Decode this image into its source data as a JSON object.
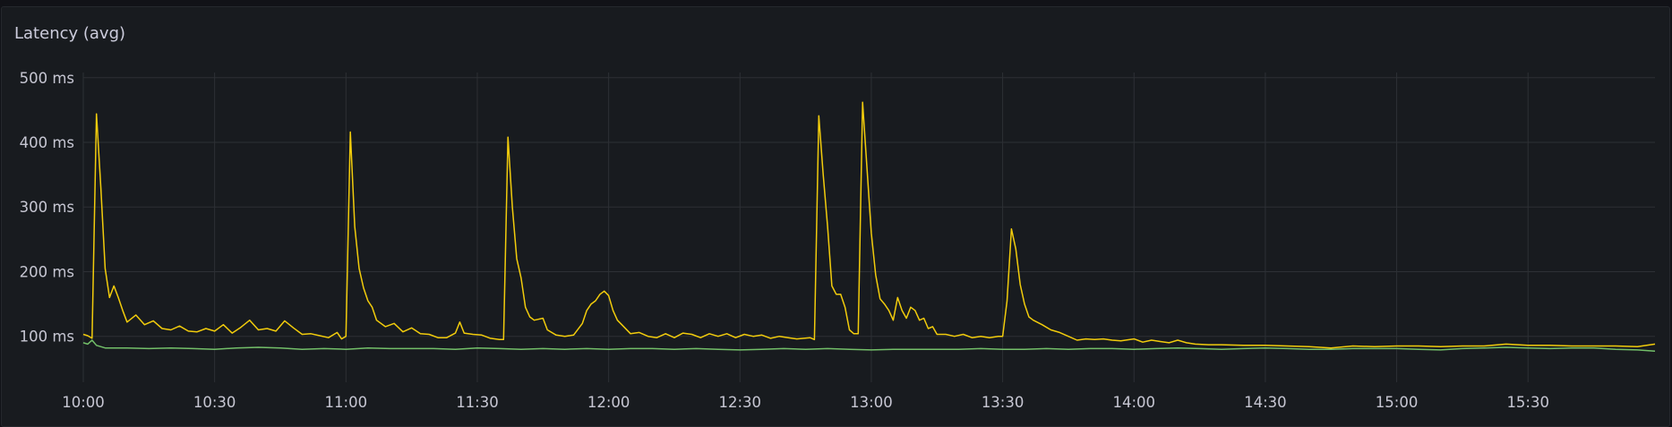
{
  "panel": {
    "title": "Latency (avg)"
  },
  "chart_data": {
    "type": "line",
    "title": "Latency (avg)",
    "xlabel": "",
    "ylabel": "",
    "x_ticks": [
      "10:00",
      "10:30",
      "11:00",
      "11:30",
      "12:00",
      "12:30",
      "13:00",
      "13:30",
      "14:00",
      "14:30",
      "15:00",
      "15:30"
    ],
    "y_ticks": [
      {
        "value": 100,
        "label": "100 ms"
      },
      {
        "value": 200,
        "label": "200 ms"
      },
      {
        "value": 300,
        "label": "300 ms"
      },
      {
        "value": 400,
        "label": "400 ms"
      },
      {
        "value": 500,
        "label": "500 ms"
      }
    ],
    "xlim": [
      "10:00",
      "15:59"
    ],
    "ylim": [
      29,
      508
    ],
    "unit": "ms",
    "grid": true,
    "legend": "none",
    "series": [
      {
        "color": "#f2cc0c",
        "points": [
          [
            "10:00",
            103
          ],
          [
            "10:01",
            101
          ],
          [
            "10:02",
            97
          ],
          [
            "10:03",
            444
          ],
          [
            "10:04",
            330
          ],
          [
            "10:05",
            205
          ],
          [
            "10:06",
            160
          ],
          [
            "10:07",
            178
          ],
          [
            "10:08",
            160
          ],
          [
            "10:09",
            140
          ],
          [
            "10:10",
            122
          ],
          [
            "10:12",
            133
          ],
          [
            "10:14",
            118
          ],
          [
            "10:16",
            124
          ],
          [
            "10:18",
            112
          ],
          [
            "10:20",
            110
          ],
          [
            "10:22",
            116
          ],
          [
            "10:24",
            108
          ],
          [
            "10:26",
            107
          ],
          [
            "10:28",
            112
          ],
          [
            "10:30",
            108
          ],
          [
            "10:32",
            118
          ],
          [
            "10:34",
            105
          ],
          [
            "10:36",
            114
          ],
          [
            "10:38",
            125
          ],
          [
            "10:40",
            110
          ],
          [
            "10:42",
            112
          ],
          [
            "10:44",
            108
          ],
          [
            "10:46",
            124
          ],
          [
            "10:48",
            113
          ],
          [
            "10:50",
            103
          ],
          [
            "10:52",
            104
          ],
          [
            "10:54",
            101
          ],
          [
            "10:56",
            98
          ],
          [
            "10:58",
            106
          ],
          [
            "10:59",
            96
          ],
          [
            "11:00",
            100
          ],
          [
            "11:01",
            416
          ],
          [
            "11:02",
            270
          ],
          [
            "11:03",
            205
          ],
          [
            "11:04",
            175
          ],
          [
            "11:05",
            155
          ],
          [
            "11:06",
            145
          ],
          [
            "11:07",
            125
          ],
          [
            "11:09",
            115
          ],
          [
            "11:11",
            120
          ],
          [
            "11:13",
            107
          ],
          [
            "11:15",
            113
          ],
          [
            "11:17",
            104
          ],
          [
            "11:19",
            103
          ],
          [
            "11:21",
            98
          ],
          [
            "11:23",
            98
          ],
          [
            "11:25",
            105
          ],
          [
            "11:26",
            122
          ],
          [
            "11:27",
            105
          ],
          [
            "11:29",
            103
          ],
          [
            "11:31",
            102
          ],
          [
            "11:33",
            97
          ],
          [
            "11:35",
            95
          ],
          [
            "11:36",
            95
          ],
          [
            "11:37",
            408
          ],
          [
            "11:38",
            300
          ],
          [
            "11:39",
            220
          ],
          [
            "11:40",
            190
          ],
          [
            "11:41",
            145
          ],
          [
            "11:42",
            130
          ],
          [
            "11:43",
            125
          ],
          [
            "11:45",
            128
          ],
          [
            "11:46",
            110
          ],
          [
            "11:48",
            102
          ],
          [
            "11:50",
            100
          ],
          [
            "11:52",
            102
          ],
          [
            "11:54",
            120
          ],
          [
            "11:55",
            140
          ],
          [
            "11:56",
            150
          ],
          [
            "11:57",
            155
          ],
          [
            "11:58",
            165
          ],
          [
            "11:59",
            170
          ],
          [
            "12:00",
            163
          ],
          [
            "12:01",
            140
          ],
          [
            "12:02",
            125
          ],
          [
            "12:03",
            118
          ],
          [
            "12:05",
            104
          ],
          [
            "12:07",
            106
          ],
          [
            "12:09",
            100
          ],
          [
            "12:11",
            98
          ],
          [
            "12:13",
            104
          ],
          [
            "12:15",
            98
          ],
          [
            "12:17",
            105
          ],
          [
            "12:19",
            103
          ],
          [
            "12:21",
            98
          ],
          [
            "12:23",
            104
          ],
          [
            "12:25",
            100
          ],
          [
            "12:27",
            104
          ],
          [
            "12:29",
            98
          ],
          [
            "12:31",
            103
          ],
          [
            "12:33",
            100
          ],
          [
            "12:35",
            102
          ],
          [
            "12:37",
            97
          ],
          [
            "12:39",
            100
          ],
          [
            "12:41",
            98
          ],
          [
            "12:43",
            96
          ],
          [
            "12:46",
            98
          ],
          [
            "12:47",
            95
          ],
          [
            "12:48",
            441
          ],
          [
            "12:49",
            350
          ],
          [
            "12:50",
            270
          ],
          [
            "12:51",
            178
          ],
          [
            "12:52",
            165
          ],
          [
            "12:53",
            165
          ],
          [
            "12:54",
            145
          ],
          [
            "12:55",
            110
          ],
          [
            "12:56",
            104
          ],
          [
            "12:57",
            104
          ],
          [
            "12:58",
            462
          ],
          [
            "12:59",
            360
          ],
          [
            "13:00",
            260
          ],
          [
            "13:01",
            195
          ],
          [
            "13:02",
            158
          ],
          [
            "13:03",
            150
          ],
          [
            "13:04",
            140
          ],
          [
            "13:05",
            125
          ],
          [
            "13:06",
            160
          ],
          [
            "13:07",
            140
          ],
          [
            "13:08",
            128
          ],
          [
            "13:09",
            145
          ],
          [
            "13:10",
            140
          ],
          [
            "13:11",
            125
          ],
          [
            "13:12",
            128
          ],
          [
            "13:13",
            112
          ],
          [
            "13:14",
            115
          ],
          [
            "13:15",
            103
          ],
          [
            "13:17",
            103
          ],
          [
            "13:19",
            100
          ],
          [
            "13:21",
            103
          ],
          [
            "13:23",
            98
          ],
          [
            "13:25",
            100
          ],
          [
            "13:27",
            98
          ],
          [
            "13:29",
            100
          ],
          [
            "13:30",
            100
          ],
          [
            "13:31",
            155
          ],
          [
            "13:32",
            266
          ],
          [
            "13:33",
            235
          ],
          [
            "13:34",
            180
          ],
          [
            "13:35",
            150
          ],
          [
            "13:36",
            130
          ],
          [
            "13:37",
            125
          ],
          [
            "13:39",
            118
          ],
          [
            "13:41",
            110
          ],
          [
            "13:43",
            106
          ],
          [
            "13:45",
            100
          ],
          [
            "13:47",
            94
          ],
          [
            "13:49",
            96
          ],
          [
            "13:51",
            95
          ],
          [
            "13:53",
            96
          ],
          [
            "13:55",
            94
          ],
          [
            "13:57",
            93
          ],
          [
            "14:00",
            96
          ],
          [
            "14:02",
            91
          ],
          [
            "14:04",
            94
          ],
          [
            "14:06",
            92
          ],
          [
            "14:08",
            90
          ],
          [
            "14:10",
            94
          ],
          [
            "14:12",
            90
          ],
          [
            "14:14",
            88
          ],
          [
            "14:17",
            87
          ],
          [
            "14:20",
            87
          ],
          [
            "14:25",
            86
          ],
          [
            "14:30",
            86
          ],
          [
            "14:35",
            85
          ],
          [
            "14:40",
            84
          ],
          [
            "14:45",
            82
          ],
          [
            "14:50",
            85
          ],
          [
            "14:55",
            84
          ],
          [
            "15:00",
            85
          ],
          [
            "15:05",
            85
          ],
          [
            "15:10",
            84
          ],
          [
            "15:15",
            85
          ],
          [
            "15:20",
            85
          ],
          [
            "15:25",
            88
          ],
          [
            "15:30",
            86
          ],
          [
            "15:35",
            86
          ],
          [
            "15:40",
            85
          ],
          [
            "15:45",
            85
          ],
          [
            "15:50",
            85
          ],
          [
            "15:55",
            84
          ],
          [
            "15:59",
            88
          ]
        ]
      },
      {
        "color": "#73bf69",
        "points": [
          [
            "10:00",
            90
          ],
          [
            "10:01",
            88
          ],
          [
            "10:02",
            94
          ],
          [
            "10:03",
            86
          ],
          [
            "10:05",
            82
          ],
          [
            "10:10",
            82
          ],
          [
            "10:15",
            81
          ],
          [
            "10:20",
            82
          ],
          [
            "10:25",
            81
          ],
          [
            "10:30",
            80
          ],
          [
            "10:35",
            82
          ],
          [
            "10:40",
            83
          ],
          [
            "10:45",
            82
          ],
          [
            "10:50",
            80
          ],
          [
            "10:55",
            81
          ],
          [
            "11:00",
            80
          ],
          [
            "11:05",
            82
          ],
          [
            "11:10",
            81
          ],
          [
            "11:15",
            81
          ],
          [
            "11:20",
            81
          ],
          [
            "11:25",
            80
          ],
          [
            "11:30",
            82
          ],
          [
            "11:35",
            81
          ],
          [
            "11:40",
            80
          ],
          [
            "11:45",
            81
          ],
          [
            "11:50",
            80
          ],
          [
            "11:55",
            81
          ],
          [
            "12:00",
            80
          ],
          [
            "12:05",
            81
          ],
          [
            "12:10",
            81
          ],
          [
            "12:15",
            80
          ],
          [
            "12:20",
            81
          ],
          [
            "12:25",
            80
          ],
          [
            "12:30",
            79
          ],
          [
            "12:35",
            80
          ],
          [
            "12:40",
            81
          ],
          [
            "12:45",
            80
          ],
          [
            "12:50",
            81
          ],
          [
            "12:55",
            80
          ],
          [
            "13:00",
            79
          ],
          [
            "13:05",
            80
          ],
          [
            "13:10",
            80
          ],
          [
            "13:15",
            80
          ],
          [
            "13:20",
            80
          ],
          [
            "13:25",
            81
          ],
          [
            "13:30",
            80
          ],
          [
            "13:35",
            80
          ],
          [
            "13:40",
            81
          ],
          [
            "13:45",
            80
          ],
          [
            "13:50",
            81
          ],
          [
            "13:55",
            81
          ],
          [
            "14:00",
            80
          ],
          [
            "14:05",
            81
          ],
          [
            "14:10",
            82
          ],
          [
            "14:15",
            81
          ],
          [
            "14:20",
            80
          ],
          [
            "14:25",
            81
          ],
          [
            "14:30",
            82
          ],
          [
            "14:35",
            81
          ],
          [
            "14:40",
            80
          ],
          [
            "14:45",
            80
          ],
          [
            "14:50",
            81
          ],
          [
            "14:55",
            81
          ],
          [
            "15:00",
            81
          ],
          [
            "15:05",
            80
          ],
          [
            "15:10",
            79
          ],
          [
            "15:15",
            81
          ],
          [
            "15:20",
            82
          ],
          [
            "15:25",
            83
          ],
          [
            "15:30",
            82
          ],
          [
            "15:35",
            81
          ],
          [
            "15:40",
            82
          ],
          [
            "15:45",
            82
          ],
          [
            "15:50",
            80
          ],
          [
            "15:55",
            79
          ],
          [
            "15:59",
            77
          ]
        ]
      }
    ]
  }
}
